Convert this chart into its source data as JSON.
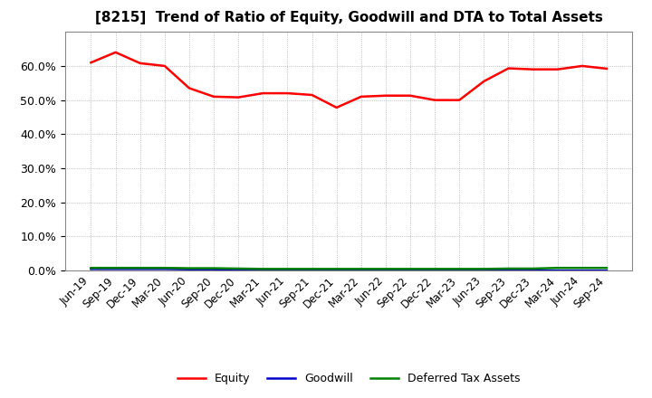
{
  "title": "[8215]  Trend of Ratio of Equity, Goodwill and DTA to Total Assets",
  "x_labels": [
    "Jun-19",
    "Sep-19",
    "Dec-19",
    "Mar-20",
    "Jun-20",
    "Sep-20",
    "Dec-20",
    "Mar-21",
    "Jun-21",
    "Sep-21",
    "Dec-21",
    "Mar-22",
    "Jun-22",
    "Sep-22",
    "Dec-22",
    "Mar-23",
    "Jun-23",
    "Sep-23",
    "Dec-23",
    "Mar-24",
    "Jun-24",
    "Sep-24"
  ],
  "equity": [
    0.61,
    0.64,
    0.608,
    0.6,
    0.535,
    0.51,
    0.508,
    0.52,
    0.52,
    0.515,
    0.478,
    0.51,
    0.513,
    0.513,
    0.5,
    0.5,
    0.555,
    0.593,
    0.59,
    0.59,
    0.6,
    0.592
  ],
  "goodwill": [
    0.005,
    0.005,
    0.005,
    0.005,
    0.004,
    0.004,
    0.003,
    0.0,
    0.0,
    0.0,
    0.0,
    0.0,
    0.0,
    0.0,
    0.0,
    0.0,
    0.0,
    0.0,
    0.0,
    0.0,
    0.0,
    0.0
  ],
  "dta": [
    0.008,
    0.008,
    0.008,
    0.008,
    0.007,
    0.007,
    0.006,
    0.005,
    0.005,
    0.005,
    0.005,
    0.005,
    0.005,
    0.005,
    0.005,
    0.005,
    0.005,
    0.006,
    0.006,
    0.008,
    0.008,
    0.008
  ],
  "equity_color": "#ff0000",
  "goodwill_color": "#0000cc",
  "dta_color": "#008000",
  "background_color": "#ffffff",
  "plot_bg_color": "#ffffff",
  "grid_color": "#999999",
  "ylim": [
    0.0,
    0.7
  ],
  "yticks": [
    0.0,
    0.1,
    0.2,
    0.3,
    0.4,
    0.5,
    0.6
  ],
  "legend_labels": [
    "Equity",
    "Goodwill",
    "Deferred Tax Assets"
  ],
  "line_width": 1.8,
  "title_fontsize": 11,
  "tick_fontsize": 8.5,
  "ytick_fontsize": 9
}
